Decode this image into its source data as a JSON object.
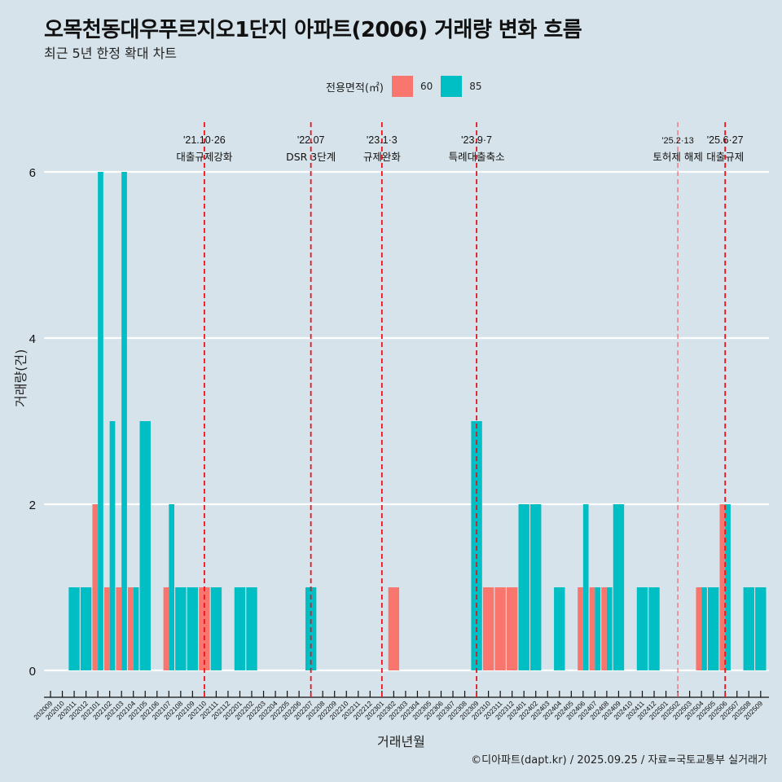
{
  "header": {
    "title": "오목천동대우푸르지오1단지 아파트(2006) 거래량 변화 흐름",
    "subtitle": "최근 5년 한정 확대 차트"
  },
  "legend": {
    "title": "전용면적(㎡)",
    "items": [
      {
        "label": "60",
        "color": "#f8766d"
      },
      {
        "label": "85",
        "color": "#00bfc4"
      }
    ]
  },
  "caption": "©디아파트(dapt.kr) / 2025.09.25 / 자료=국토교통부 실거래가",
  "chart_data": {
    "type": "bar",
    "title": "오목천동대우푸르지오1단지 아파트(2006) 거래량 변화 흐름",
    "subtitle": "최근 5년 한정 확대 차트",
    "xlabel": "거래년월",
    "ylabel": "거래량(건)",
    "ylim": [
      0,
      6
    ],
    "yticks": [
      0,
      2,
      4,
      6
    ],
    "grid": true,
    "legend_position": "top",
    "categories": [
      "202009",
      "202010",
      "202011",
      "202012",
      "202101",
      "202102",
      "202103",
      "202104",
      "202105",
      "202106",
      "202107",
      "202108",
      "202109",
      "202110",
      "202111",
      "202112",
      "202201",
      "202202",
      "202203",
      "202204",
      "202205",
      "202206",
      "202207",
      "202208",
      "202209",
      "202210",
      "202211",
      "202212",
      "202301",
      "202302",
      "202303",
      "202304",
      "202305",
      "202306",
      "202307",
      "202308",
      "202309",
      "202310",
      "202311",
      "202312",
      "202401",
      "202402",
      "202403",
      "202404",
      "202405",
      "202406",
      "202407",
      "202408",
      "202409",
      "202410",
      "202411",
      "202412",
      "202501",
      "202502",
      "202503",
      "202504",
      "202505",
      "202506",
      "202507",
      "202508",
      "202509"
    ],
    "series": [
      {
        "name": "60",
        "color": "#f8766d",
        "values": [
          0,
          0,
          0,
          0,
          2,
          1,
          1,
          1,
          0,
          0,
          1,
          0,
          0,
          1,
          0,
          0,
          0,
          0,
          0,
          0,
          0,
          0,
          0,
          0,
          0,
          0,
          0,
          0,
          0,
          1,
          0,
          0,
          0,
          0,
          0,
          0,
          0,
          1,
          1,
          1,
          0,
          0,
          0,
          0,
          0,
          1,
          1,
          1,
          0,
          0,
          0,
          0,
          0,
          0,
          0,
          1,
          0,
          2,
          0,
          0,
          0
        ]
      },
      {
        "name": "85",
        "color": "#00bfc4",
        "values": [
          0,
          0,
          1,
          1,
          6,
          3,
          6,
          1,
          3,
          0,
          2,
          1,
          1,
          0,
          1,
          0,
          1,
          1,
          0,
          0,
          0,
          0,
          1,
          0,
          0,
          0,
          0,
          0,
          0,
          0,
          0,
          0,
          0,
          0,
          0,
          0,
          3,
          0,
          0,
          0,
          2,
          2,
          0,
          1,
          0,
          2,
          1,
          1,
          2,
          0,
          1,
          1,
          0,
          0,
          0,
          1,
          1,
          2,
          0,
          1,
          1
        ]
      }
    ],
    "annotations": [
      {
        "month": "202110",
        "date": "'21.10·26",
        "label": "대출규제강화",
        "style": "major"
      },
      {
        "month": "202207",
        "date": "'22.07",
        "label": "DSR 3단계",
        "style": "major"
      },
      {
        "month": "202301",
        "date": "'23.1·3",
        "label": "규제완화",
        "style": "major"
      },
      {
        "month": "202309",
        "date": "'23.9·7",
        "label": "특례대출축소",
        "style": "major"
      },
      {
        "month": "202502",
        "date": "'25.2·13",
        "label": "토허제 해제",
        "style": "minor"
      },
      {
        "month": "202506",
        "date": "'25.6·27",
        "label": "대출규제",
        "style": "major"
      }
    ]
  }
}
